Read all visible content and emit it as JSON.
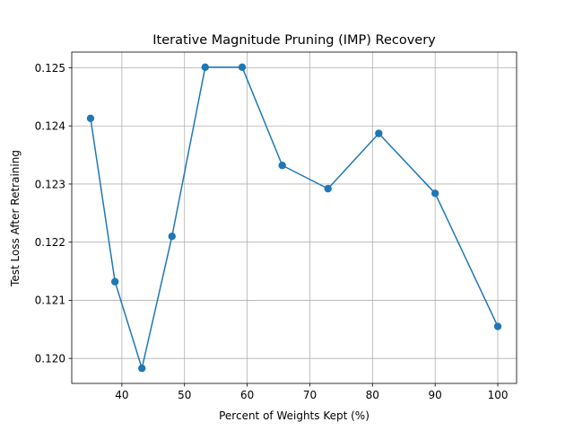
{
  "chart_data": {
    "type": "line",
    "title": "Iterative Magnitude Pruning (IMP) Recovery",
    "xlabel": "Percent of Weights Kept (%)",
    "ylabel": "Test Loss After Retraining",
    "x": [
      35.0,
      38.9,
      43.2,
      48.0,
      53.3,
      59.2,
      65.6,
      72.9,
      81.0,
      90.0,
      100.0
    ],
    "series": [
      {
        "values": [
          0.12413,
          0.12132,
          0.11983,
          0.1221,
          0.12501,
          0.12501,
          0.12332,
          0.12292,
          0.12387,
          0.12284,
          0.12055
        ]
      }
    ],
    "xlim": [
      32.0,
      103.0
    ],
    "ylim": [
      0.11957,
      0.12527
    ],
    "xticks": [
      40,
      50,
      60,
      70,
      80,
      90,
      100
    ],
    "xtick_labels": [
      "40",
      "50",
      "60",
      "70",
      "80",
      "90",
      "100"
    ],
    "yticks": [
      0.12,
      0.121,
      0.122,
      0.123,
      0.124,
      0.125
    ],
    "ytick_labels": [
      "0.120",
      "0.121",
      "0.122",
      "0.123",
      "0.124",
      "0.125"
    ],
    "grid": true,
    "color": "#1f77b4"
  }
}
